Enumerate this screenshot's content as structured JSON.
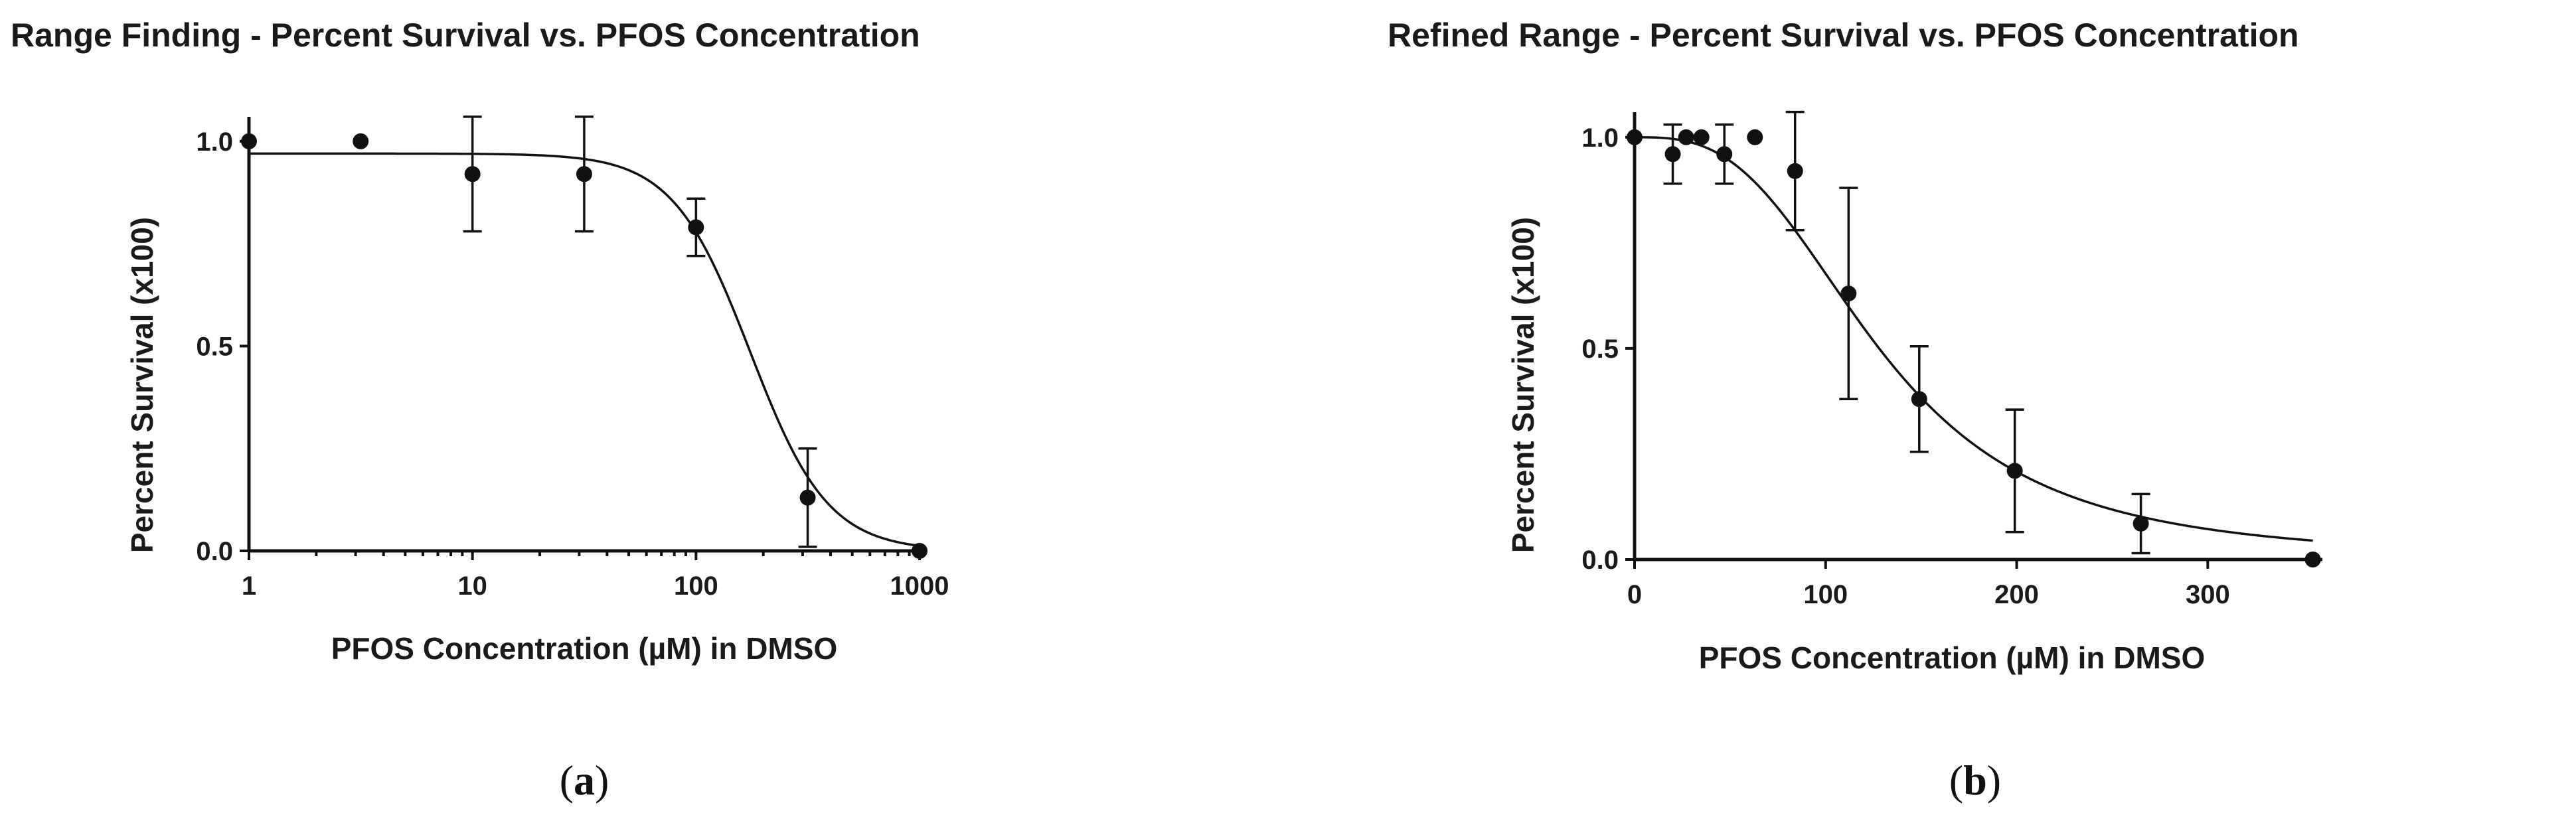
{
  "chart_data": [
    {
      "type": "scatter",
      "title": "Range Finding - Percent Survival vs. PFOS Concentration",
      "xlabel": "PFOS Concentration (µM) in DMSO",
      "ylabel": "Percent Survival (x100)",
      "xscale": "log",
      "xlim": [
        1,
        1000
      ],
      "ylim": [
        0,
        1.05
      ],
      "xticks": [
        1,
        10,
        100,
        1000
      ],
      "xtick_labels": [
        "1",
        "10",
        "100",
        "1000"
      ],
      "yticks": [
        0,
        0.5,
        1
      ],
      "ytick_labels": [
        "0.0",
        "0.5",
        "1.0"
      ],
      "panel_label": "a",
      "grid": false,
      "points": [
        {
          "x": 1,
          "y": 1.0,
          "err": 0
        },
        {
          "x": 3.16,
          "y": 1.0,
          "err": 0
        },
        {
          "x": 10,
          "y": 0.92,
          "err": 0.14
        },
        {
          "x": 31.6,
          "y": 0.92,
          "err": 0.14
        },
        {
          "x": 100,
          "y": 0.79,
          "err": 0.07
        },
        {
          "x": 316,
          "y": 0.13,
          "err": 0.12
        },
        {
          "x": 1000,
          "y": 0.0,
          "err": 0
        }
      ],
      "fit": {
        "model": "sigmoidal dose-response",
        "top": 0.97,
        "bottom": 0,
        "ic50": 175,
        "hill": 2.5
      }
    },
    {
      "type": "scatter",
      "title": "Refined Range - Percent Survival vs. PFOS Concentration",
      "xlabel": "PFOS Concentration (µM) in DMSO",
      "ylabel": "Percent Survival (x100)",
      "xscale": "linear",
      "xlim": [
        0,
        360
      ],
      "ylim": [
        0,
        1.05
      ],
      "xticks": [
        0,
        100,
        200,
        300
      ],
      "xtick_labels": [
        "0",
        "100",
        "200",
        "300"
      ],
      "yticks": [
        0,
        0.5,
        1
      ],
      "ytick_labels": [
        "0.0",
        "0.5",
        "1.0"
      ],
      "panel_label": "b",
      "grid": false,
      "points": [
        {
          "x": 0,
          "y": 1.0,
          "err": 0
        },
        {
          "x": 20,
          "y": 0.96,
          "err": 0.07
        },
        {
          "x": 27,
          "y": 1.0,
          "err": 0
        },
        {
          "x": 35,
          "y": 1.0,
          "err": 0
        },
        {
          "x": 47,
          "y": 0.96,
          "err": 0.07
        },
        {
          "x": 63,
          "y": 1.0,
          "err": 0
        },
        {
          "x": 84,
          "y": 0.92,
          "err": 0.14
        },
        {
          "x": 112,
          "y": 0.63,
          "err": 0.25
        },
        {
          "x": 149,
          "y": 0.38,
          "err": 0.125
        },
        {
          "x": 199,
          "y": 0.21,
          "err": 0.145
        },
        {
          "x": 265,
          "y": 0.085,
          "err": 0.07
        },
        {
          "x": 355,
          "y": 0.0,
          "err": 0
        }
      ],
      "fit": {
        "model": "sigmoidal dose-response",
        "top": 1.0,
        "bottom": 0,
        "ic50": 128,
        "hill": 3.0
      }
    }
  ]
}
